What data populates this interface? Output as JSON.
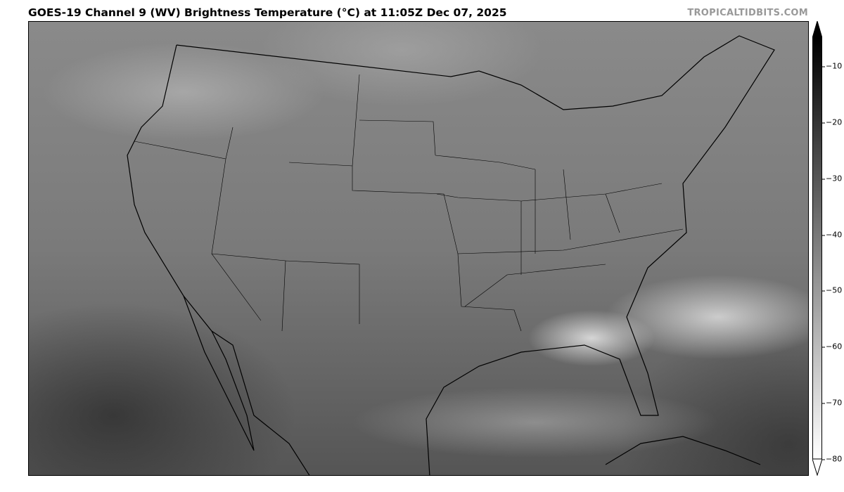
{
  "title": "GOES-19 Channel 9 (WV) Brightness Temperature (°C) at 11:05Z Dec 07, 2025",
  "brand": "TROPICALTIDBITS.COM",
  "colorbar": {
    "colormap": "grayscale, black = warm, white = cold",
    "range": [
      -5,
      -80
    ],
    "extend": "both",
    "ticks": [
      "−10",
      "−20",
      "−30",
      "−40",
      "−50",
      "−60",
      "−70",
      "−80"
    ]
  }
}
